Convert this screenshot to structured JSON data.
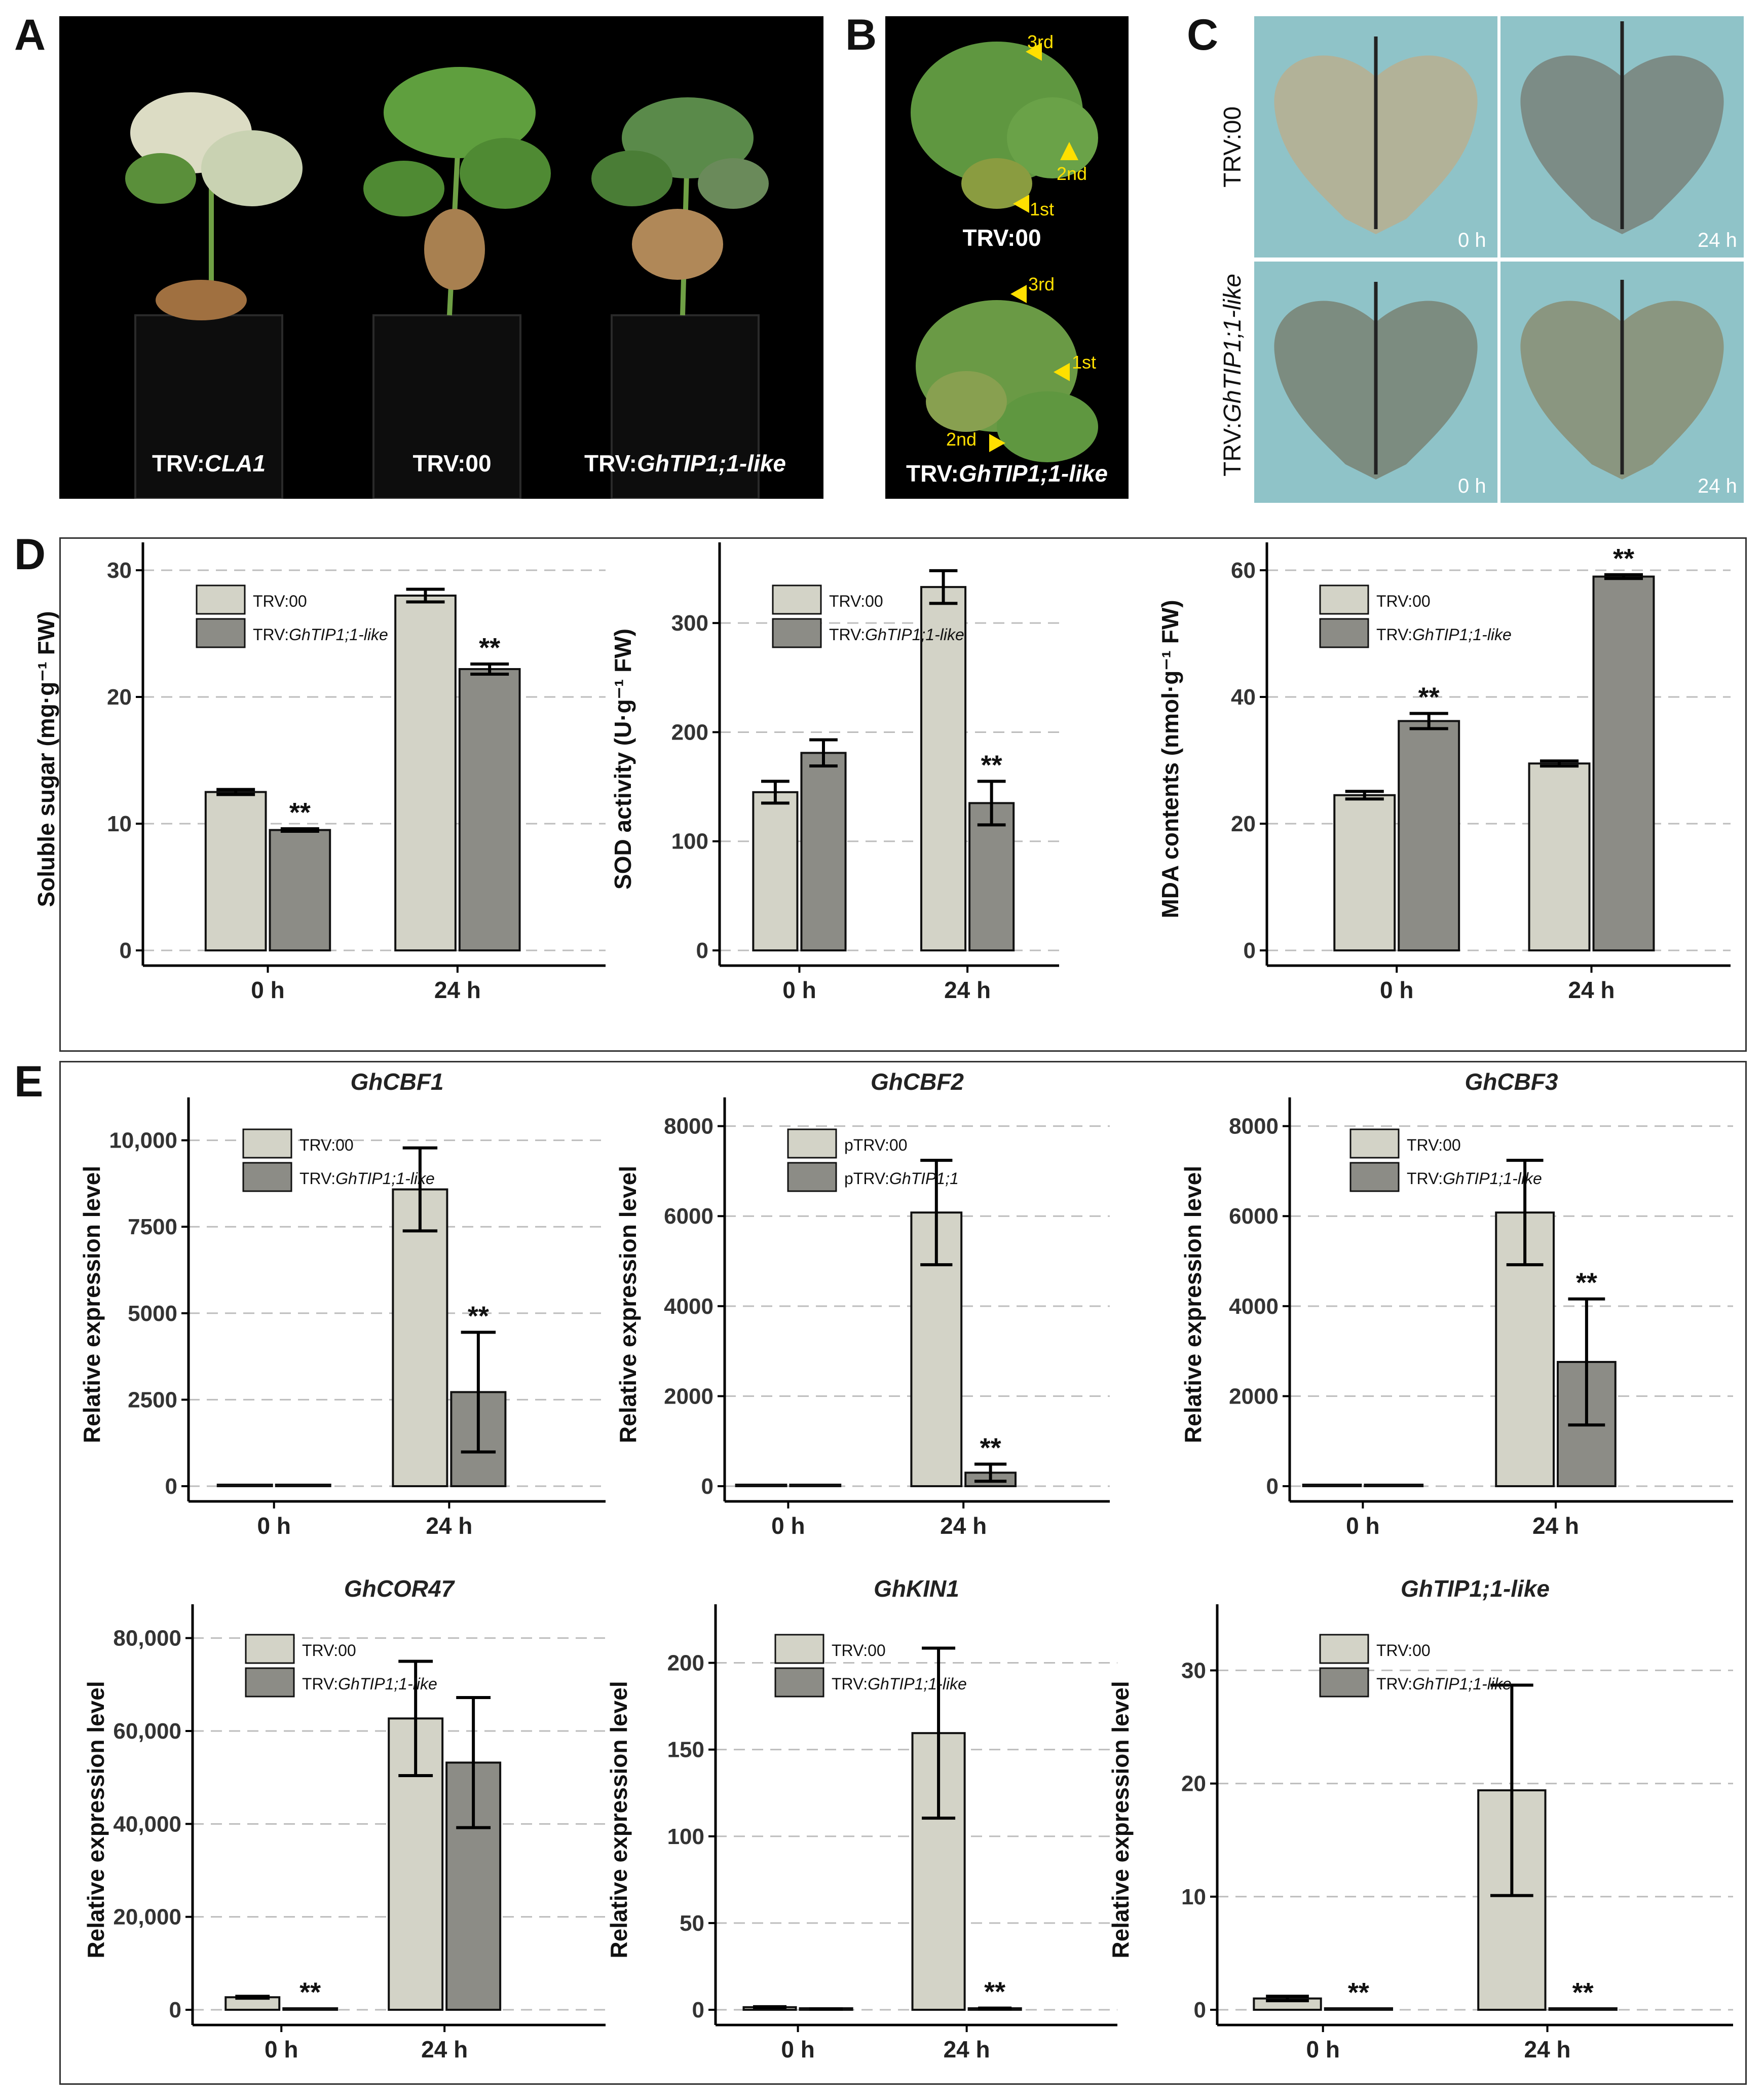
{
  "panels": {
    "A": {
      "letter": "A",
      "labels": [
        {
          "prefix": "TRV:",
          "italic": "CLA1"
        },
        {
          "prefix": "TRV:00",
          "italic": ""
        },
        {
          "prefix": "TRV:",
          "italic": "GhTIP1;1-like"
        }
      ]
    },
    "B": {
      "letter": "B",
      "top_label": "TRV:00",
      "bottom_label_prefix": "TRV:",
      "bottom_label_italic": "GhTIP1;1-like",
      "top_arrows": [
        "3rd",
        "2nd",
        "1st"
      ],
      "bottom_arrows": [
        "3rd",
        "1st",
        "2nd"
      ]
    },
    "C": {
      "letter": "C",
      "row_labels": [
        {
          "prefix": "TRV:00",
          "italic": ""
        },
        {
          "prefix": "TRV:",
          "italic": "GhTIP1;1-like"
        }
      ],
      "time_labels": [
        "0 h",
        "24 h",
        "0 h",
        "24 h"
      ]
    },
    "D": {
      "letter": "D"
    },
    "E": {
      "letter": "E"
    }
  },
  "colors": {
    "bar_light": "#d3d3c7",
    "bar_dark": "#8c8c86",
    "error_bar": "#000000",
    "grid": "#bdbdbd",
    "leaf_bg": "#8fc3c8"
  },
  "chart_data": [
    {
      "type": "bar",
      "id": "sugar",
      "title": "",
      "ylabel": "Soluble sugar (mg·g⁻¹ FW)",
      "categories": [
        "0 h",
        "24 h"
      ],
      "ylim": [
        0,
        31
      ],
      "ticks": [
        0,
        10,
        20,
        30
      ],
      "series": [
        {
          "name": "TRV:",
          "italic": "00",
          "values": [
            12.5,
            28.0
          ],
          "errors": [
            0.2,
            0.5
          ],
          "sig": [
            "",
            ""
          ]
        },
        {
          "name": "TRV:",
          "italic": "GhTIP1;1-like",
          "values": [
            9.5,
            22.2
          ],
          "errors": [
            0.1,
            0.4
          ],
          "sig": [
            "**",
            "**"
          ]
        }
      ]
    },
    {
      "type": "bar",
      "id": "sod",
      "title": "",
      "ylabel": "SOD activity (U·g⁻¹ FW)",
      "categories": [
        "0 h",
        "24 h"
      ],
      "ylim": [
        0,
        360
      ],
      "ticks": [
        0,
        100,
        200,
        300
      ],
      "series": [
        {
          "name": "TRV:",
          "italic": "00",
          "values": [
            145,
            333
          ],
          "errors": [
            10,
            15
          ],
          "sig": [
            "",
            ""
          ]
        },
        {
          "name": "TRV:",
          "italic": "GhTIP1;1-like",
          "values": [
            181,
            135
          ],
          "errors": [
            12,
            20
          ],
          "sig": [
            "",
            "**"
          ]
        }
      ]
    },
    {
      "type": "bar",
      "id": "mda",
      "title": "",
      "ylabel": "MDA contents (nmol·g⁻¹ FW)",
      "categories": [
        "0 h",
        "24 h"
      ],
      "ylim": [
        0,
        62
      ],
      "ticks": [
        0,
        20,
        40,
        60
      ],
      "series": [
        {
          "name": "TRV:",
          "italic": "00",
          "values": [
            24.5,
            29.5
          ],
          "errors": [
            0.6,
            0.4
          ],
          "sig": [
            "",
            ""
          ]
        },
        {
          "name": "TRV:",
          "italic": "GhTIP1;1-like",
          "values": [
            36.2,
            59.0
          ],
          "errors": [
            1.2,
            0.3
          ],
          "sig": [
            "**",
            "**"
          ]
        }
      ]
    },
    {
      "type": "bar",
      "id": "cbf1",
      "title": "GhCBF1",
      "ylabel": "Relative expression level",
      "categories": [
        "0 h",
        "24 h"
      ],
      "ylim": [
        0,
        10800
      ],
      "ticks": [
        0,
        2500,
        5000,
        7500,
        10000
      ],
      "tick_labels": [
        "0",
        "2500",
        "5000",
        "7500",
        "10,000"
      ],
      "series": [
        {
          "name": "TRV:",
          "italic": "00",
          "values": [
            1,
            8580
          ],
          "errors": [
            0,
            1200
          ],
          "sig": [
            "",
            ""
          ]
        },
        {
          "name": "TRV:",
          "italic": "GhTIP1;1-like",
          "values": [
            1,
            2720
          ],
          "errors": [
            0,
            1730
          ],
          "sig": [
            "",
            "**"
          ]
        }
      ]
    },
    {
      "type": "bar",
      "id": "cbf2",
      "title": "GhCBF2",
      "ylabel": "Relative expression level",
      "categories": [
        "0 h",
        "24 h"
      ],
      "ylim": [
        0,
        8300
      ],
      "ticks": [
        0,
        2000,
        4000,
        6000,
        8000
      ],
      "series": [
        {
          "name": "pTRV:",
          "italic": "00",
          "values": [
            1,
            6080
          ],
          "errors": [
            0,
            1160
          ],
          "sig": [
            "",
            ""
          ]
        },
        {
          "name": "pTRV:",
          "italic": "GhTIP1;1",
          "values": [
            1,
            300
          ],
          "errors": [
            0,
            190
          ],
          "sig": [
            "",
            "**"
          ]
        }
      ]
    },
    {
      "type": "bar",
      "id": "cbf3",
      "title": "GhCBF3",
      "ylabel": "Relative expression level",
      "categories": [
        "0 h",
        "24 h"
      ],
      "ylim": [
        0,
        8300
      ],
      "ticks": [
        0,
        2000,
        4000,
        6000,
        8000
      ],
      "series": [
        {
          "name": "TRV:",
          "italic": "00",
          "values": [
            1,
            6080
          ],
          "errors": [
            0,
            1160
          ],
          "sig": [
            "",
            ""
          ]
        },
        {
          "name": "TRV:",
          "italic": "GhTIP1;1-like",
          "values": [
            1,
            2760
          ],
          "errors": [
            0,
            1400
          ],
          "sig": [
            "",
            "**"
          ]
        }
      ]
    },
    {
      "type": "bar",
      "id": "cor47",
      "title": "GhCOR47",
      "ylabel": "Relative expression level",
      "categories": [
        "0 h",
        "24 h"
      ],
      "ylim": [
        0,
        84000
      ],
      "ticks": [
        0,
        20000,
        40000,
        60000,
        80000
      ],
      "tick_labels": [
        "0",
        "20,000",
        "40,000",
        "60,000",
        "80,000"
      ],
      "series": [
        {
          "name": "TRV:",
          "italic": "00",
          "values": [
            2700,
            62700
          ],
          "errors": [
            200,
            12300
          ],
          "sig": [
            "",
            ""
          ]
        },
        {
          "name": "TRV:",
          "italic": "GhTIP1;1-like",
          "values": [
            300,
            53200
          ],
          "errors": [
            0,
            14000
          ],
          "sig": [
            "**",
            ""
          ]
        }
      ]
    },
    {
      "type": "bar",
      "id": "kin1",
      "title": "GhKIN1",
      "ylabel": "Relative expression level",
      "categories": [
        "0 h",
        "24 h"
      ],
      "ylim": [
        0,
        225
      ],
      "ticks": [
        0,
        50,
        100,
        150,
        200
      ],
      "series": [
        {
          "name": "TRV:",
          "italic": "00",
          "values": [
            1.5,
            159.5
          ],
          "errors": [
            0.3,
            49
          ],
          "sig": [
            "",
            ""
          ]
        },
        {
          "name": "TRV:",
          "italic": "GhTIP1;1-like",
          "values": [
            0.5,
            0.8
          ],
          "errors": [
            0.1,
            0.2
          ],
          "sig": [
            "",
            "**"
          ]
        }
      ]
    },
    {
      "type": "bar",
      "id": "tip11",
      "title": "GhTIP1;1-like",
      "ylabel": "Relative expression level",
      "categories": [
        "0 h",
        "24 h"
      ],
      "ylim": [
        0,
        34.5
      ],
      "ticks": [
        0,
        10,
        20,
        30
      ],
      "series": [
        {
          "name": "TRV:",
          "italic": "00",
          "values": [
            1.0,
            19.4
          ],
          "errors": [
            0.2,
            9.3
          ],
          "sig": [
            "",
            ""
          ]
        },
        {
          "name": "TRV:",
          "italic": "GhTIP1;1-like",
          "values": [
            0.1,
            0.1
          ],
          "errors": [
            0,
            0
          ],
          "sig": [
            "**",
            "**"
          ]
        }
      ]
    }
  ]
}
